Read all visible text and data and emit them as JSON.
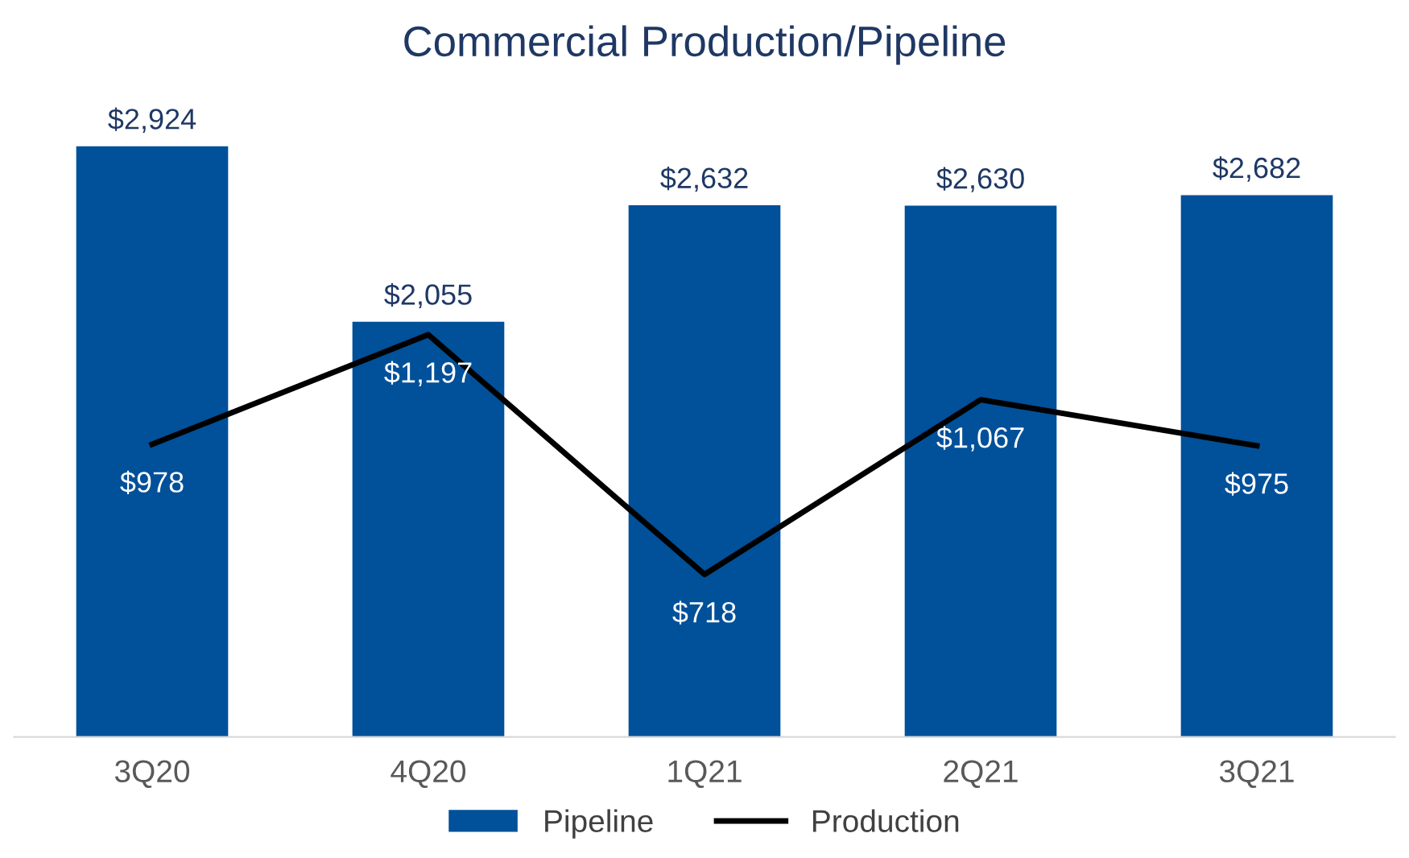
{
  "chart_data": {
    "type": "bar",
    "title": "Commercial Production/Pipeline",
    "categories": [
      "3Q20",
      "4Q20",
      "1Q21",
      "2Q21",
      "3Q21"
    ],
    "series": [
      {
        "name": "Pipeline",
        "color": "#00509a",
        "values": [
          2924,
          2055,
          2632,
          2630,
          2682
        ],
        "value_labels": [
          "$2,924",
          "$2,055",
          "$2,632",
          "$2,630",
          "$2,682"
        ]
      },
      {
        "name": "Production",
        "type": "line",
        "axis": "y2",
        "color": "#000000",
        "values": [
          978,
          1197,
          718,
          1067,
          975
        ],
        "value_labels": [
          "$978",
          "$1,197",
          "$718",
          "$1,067",
          "$975"
        ]
      }
    ],
    "legend": "bottom",
    "marker": "none",
    "line_style": "solid"
  }
}
